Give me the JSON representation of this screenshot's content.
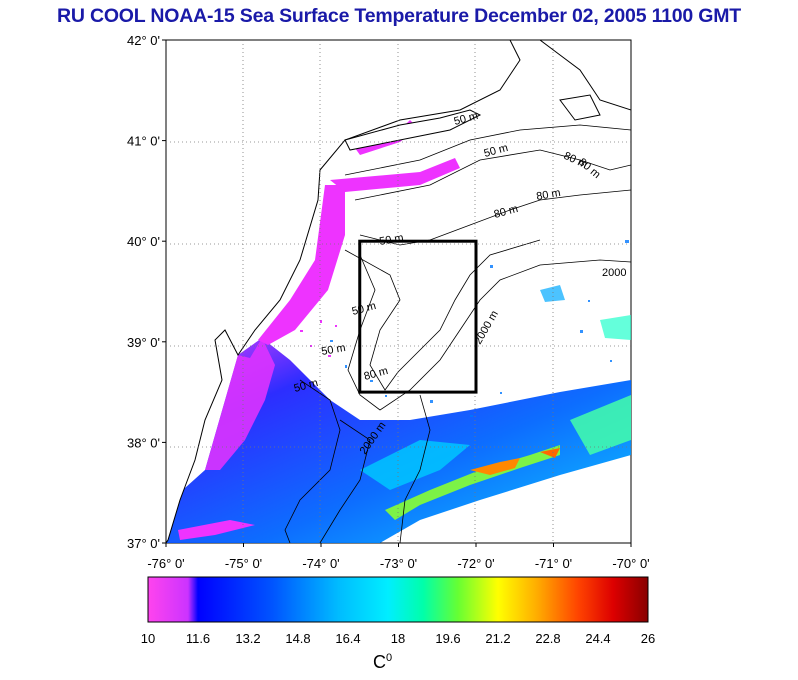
{
  "title": "RU COOL  NOAA-15 Sea Surface Temperature December 02, 2005 1100 GMT",
  "map": {
    "lat_labels": [
      "42° 0'",
      "41° 0'",
      "40° 0'",
      "39° 0'",
      "38° 0'",
      "37° 0'"
    ],
    "lon_labels": [
      "-76° 0'",
      "-75° 0'",
      "-74° 0'",
      "-73° 0'",
      "-72° 0'",
      "-71° 0'",
      "-70° 0'"
    ],
    "lat_range": [
      37,
      42
    ],
    "lon_range": [
      -76,
      -70
    ],
    "box": {
      "lat_min": 38.5,
      "lat_max": 40.0,
      "lon_min": -73.5,
      "lon_max": -72.0
    },
    "contour_labels": [
      "50 m",
      "50 m",
      "80 m",
      "80 m",
      "50 m",
      "80 m",
      "50 m",
      "50 m",
      "80 m",
      "2000",
      "2000 m",
      "50 m",
      "80 m",
      "2000 m"
    ]
  },
  "colorbar": {
    "min": 10,
    "max": 26,
    "tick_labels": [
      "10",
      "11.6",
      "13.2",
      "14.8",
      "16.4",
      "18",
      "19.6",
      "21.2",
      "22.8",
      "24.4",
      "26"
    ],
    "unit_base": "C",
    "unit_sup": "0",
    "colors": [
      "#ff44ee",
      "#cc33ff",
      "#0000ff",
      "#0055ff",
      "#00bbff",
      "#00eeff",
      "#00ffaa",
      "#66ff33",
      "#ffff00",
      "#ffaa00",
      "#ff4400",
      "#dd0000",
      "#880000"
    ]
  }
}
